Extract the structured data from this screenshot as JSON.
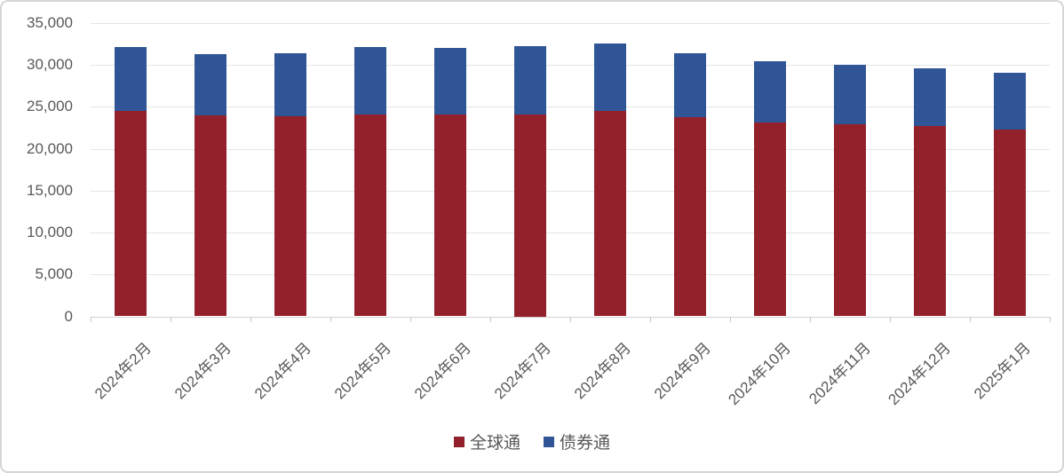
{
  "chart_data": {
    "type": "bar",
    "stacked": true,
    "title": "",
    "xlabel": "",
    "ylabel": "",
    "categories": [
      "2024年2月",
      "2024年3月",
      "2024年4月",
      "2024年5月",
      "2024年6月",
      "2024年7月",
      "2024年8月",
      "2024年9月",
      "2024年10月",
      "2024年11月",
      "2024年12月",
      "2025年1月"
    ],
    "series": [
      {
        "name": "全球通",
        "color": "#93212b",
        "values": [
          24500,
          23950,
          23850,
          24100,
          24100,
          24150,
          24500,
          23800,
          23100,
          22950,
          22700,
          22300
        ]
      },
      {
        "name": "债券通",
        "color": "#2f5597",
        "values": [
          7600,
          7350,
          7550,
          8050,
          7950,
          8150,
          8100,
          7600,
          7300,
          7100,
          6900,
          6800
        ]
      }
    ],
    "ylim": [
      0,
      35000
    ],
    "yticks": [
      {
        "value": 0,
        "label": "0"
      },
      {
        "value": 5000,
        "label": "5,000"
      },
      {
        "value": 10000,
        "label": "10,000"
      },
      {
        "value": 15000,
        "label": "15,000"
      },
      {
        "value": 20000,
        "label": "20,000"
      },
      {
        "value": 25000,
        "label": "25,000"
      },
      {
        "value": 30000,
        "label": "30,000"
      },
      {
        "value": 35000,
        "label": "35,000"
      }
    ],
    "grid": true,
    "legend_position": "bottom"
  }
}
